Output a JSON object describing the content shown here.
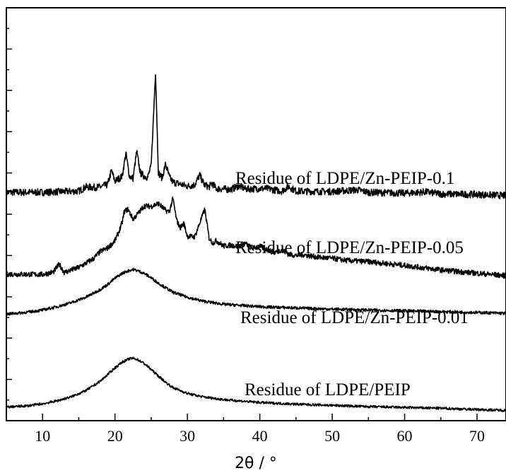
{
  "chart_data": {
    "type": "line",
    "title": "",
    "xlabel": "2θ / °",
    "ylabel": "",
    "xlim": [
      5,
      74
    ],
    "ylim": [
      0,
      1
    ],
    "x_ticks": [
      10,
      20,
      30,
      40,
      50,
      60,
      70
    ],
    "y_ticks_labeled": false,
    "grid": false,
    "legend": "none",
    "series": [
      {
        "name": "Residue of LDPE/Zn-PEIP-0.1",
        "color": "#000000",
        "x": [
          5,
          10,
          15,
          16,
          17,
          18,
          19,
          19.5,
          20,
          21,
          21.5,
          22,
          22.5,
          23,
          23.5,
          24,
          24.5,
          25,
          25.6,
          26,
          26.5,
          27,
          27.5,
          28,
          29,
          30,
          31,
          31.7,
          32.3,
          33,
          33.4,
          34,
          35,
          36,
          37,
          37.5,
          38,
          40,
          41,
          43,
          44,
          45,
          48,
          50,
          53.5,
          55,
          60,
          63,
          65,
          70,
          74
        ],
        "values": [
          0.553,
          0.553,
          0.556,
          0.566,
          0.565,
          0.566,
          0.572,
          0.606,
          0.58,
          0.592,
          0.648,
          0.592,
          0.587,
          0.652,
          0.6,
          0.593,
          0.589,
          0.616,
          0.846,
          0.6,
          0.588,
          0.622,
          0.59,
          0.578,
          0.573,
          0.568,
          0.571,
          0.595,
          0.572,
          0.566,
          0.575,
          0.562,
          0.561,
          0.56,
          0.568,
          0.566,
          0.561,
          0.562,
          0.562,
          0.556,
          0.567,
          0.556,
          0.555,
          0.555,
          0.559,
          0.553,
          0.551,
          0.554,
          0.549,
          0.548,
          0.545
        ]
      },
      {
        "name": "Residue of LDPE/Zn-PEIP-0.05",
        "color": "#000000",
        "x": [
          5,
          10,
          11.5,
          12.3,
          13,
          15,
          17,
          18,
          19,
          20,
          20.5,
          21,
          21.3,
          21.8,
          22.5,
          23.5,
          24,
          25,
          26,
          27,
          27.5,
          28,
          28.5,
          29,
          29.5,
          30,
          31,
          32.4,
          33,
          33.5,
          34,
          35,
          36,
          37,
          38,
          39,
          40,
          42,
          43,
          44,
          45,
          46,
          48,
          50,
          52,
          55,
          60,
          65,
          70,
          74
        ],
        "values": [
          0.355,
          0.354,
          0.36,
          0.379,
          0.359,
          0.371,
          0.392,
          0.41,
          0.418,
          0.436,
          0.456,
          0.48,
          0.507,
          0.512,
          0.488,
          0.508,
          0.52,
          0.519,
          0.526,
          0.509,
          0.506,
          0.538,
          0.486,
          0.467,
          0.478,
          0.447,
          0.445,
          0.512,
          0.442,
          0.43,
          0.436,
          0.423,
          0.425,
          0.422,
          0.429,
          0.417,
          0.422,
          0.407,
          0.414,
          0.403,
          0.4,
          0.402,
          0.396,
          0.393,
          0.388,
          0.385,
          0.376,
          0.365,
          0.357,
          0.351
        ]
      },
      {
        "name": "Residue of LDPE/Zn-PEIP-0.01",
        "color": "#000000",
        "x": [
          5,
          8,
          10,
          12,
          14,
          16,
          18,
          19,
          20,
          21,
          22,
          22.5,
          23,
          24,
          25,
          26,
          27,
          28,
          30,
          32,
          35,
          40,
          45,
          50,
          55,
          60,
          65,
          70,
          74
        ],
        "values": [
          0.258,
          0.263,
          0.268,
          0.276,
          0.286,
          0.299,
          0.318,
          0.33,
          0.345,
          0.357,
          0.364,
          0.366,
          0.364,
          0.357,
          0.346,
          0.333,
          0.322,
          0.311,
          0.299,
          0.29,
          0.282,
          0.276,
          0.273,
          0.27,
          0.268,
          0.266,
          0.264,
          0.262,
          0.26
        ]
      },
      {
        "name": "Residue of LDPE/PEIP",
        "color": "#000000",
        "x": [
          5,
          8,
          10,
          12,
          14,
          16,
          18,
          19,
          20,
          21,
          22,
          22.5,
          23,
          24,
          25,
          26,
          27,
          28,
          30,
          32,
          35,
          40,
          45,
          50,
          55,
          60,
          65,
          70,
          74
        ],
        "values": [
          0.033,
          0.036,
          0.041,
          0.048,
          0.058,
          0.073,
          0.096,
          0.112,
          0.128,
          0.142,
          0.15,
          0.151,
          0.149,
          0.139,
          0.124,
          0.108,
          0.093,
          0.08,
          0.066,
          0.058,
          0.051,
          0.044,
          0.04,
          0.037,
          0.034,
          0.032,
          0.03,
          0.027,
          0.025
        ]
      }
    ]
  }
}
